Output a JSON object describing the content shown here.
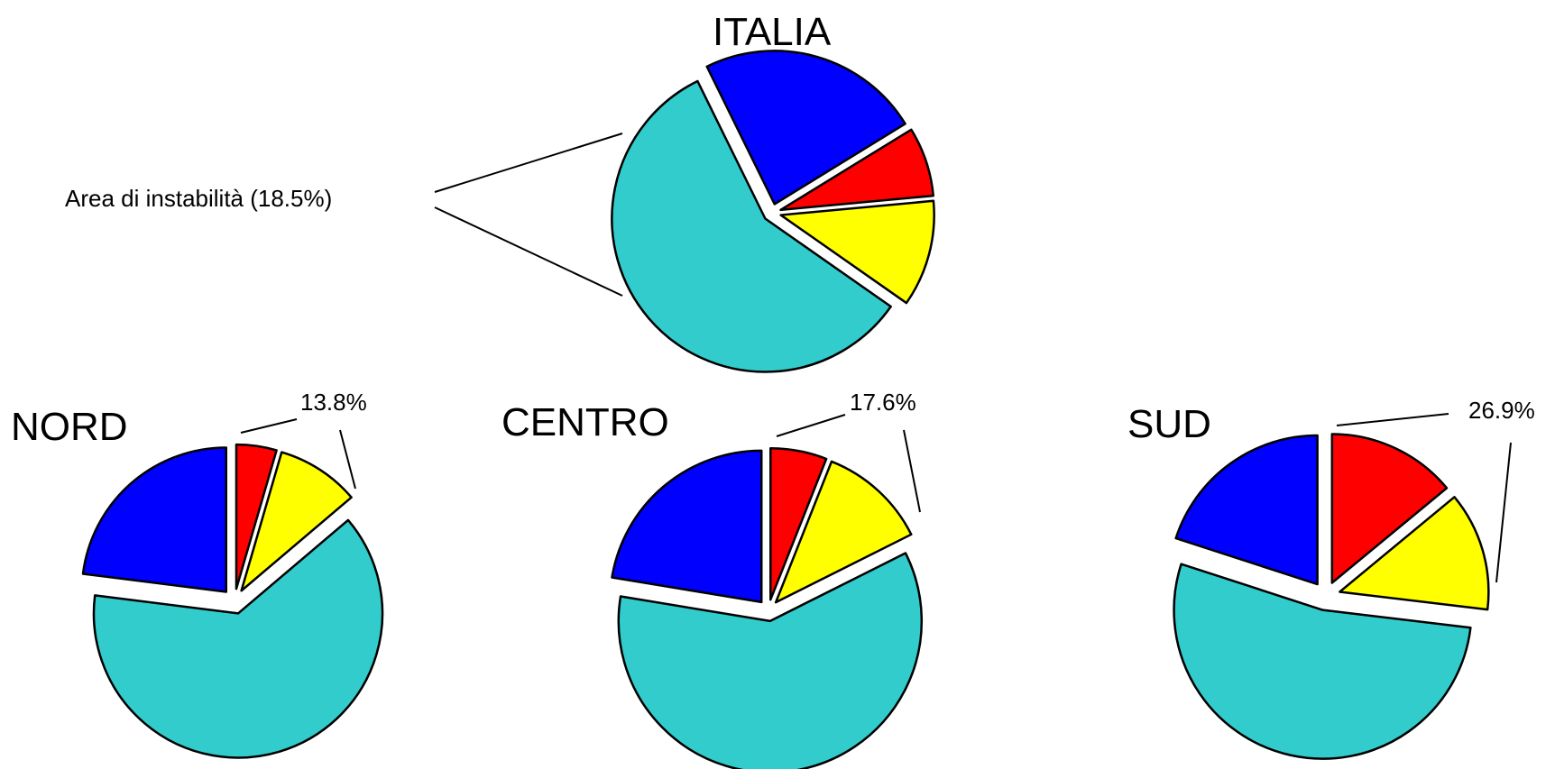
{
  "colors": {
    "teal": "#33CCCC",
    "blue": "#0000FF",
    "red": "#FF0000",
    "yellow": "#FFFF00"
  },
  "chart_data": [
    {
      "type": "pie",
      "title": "ITALIA",
      "annotation": "Area di instabilità (18.5%)",
      "slices": [
        {
          "color": "teal",
          "value": 58.0
        },
        {
          "color": "blue",
          "value": 23.5
        },
        {
          "color": "red",
          "value": 7.3
        },
        {
          "color": "yellow",
          "value": 11.2
        }
      ]
    },
    {
      "type": "pie",
      "title": "NORD",
      "annotation": "13.8%",
      "slices": [
        {
          "color": "red",
          "value": 4.5
        },
        {
          "color": "yellow",
          "value": 9.3
        },
        {
          "color": "teal",
          "value": 63.2
        },
        {
          "color": "blue",
          "value": 23.0
        }
      ]
    },
    {
      "type": "pie",
      "title": "CENTRO",
      "annotation": "17.6%",
      "slices": [
        {
          "color": "red",
          "value": 6.0
        },
        {
          "color": "yellow",
          "value": 11.6
        },
        {
          "color": "teal",
          "value": 60.0
        },
        {
          "color": "blue",
          "value": 22.4
        }
      ]
    },
    {
      "type": "pie",
      "title": "SUD",
      "annotation": "26.9%",
      "slices": [
        {
          "color": "red",
          "value": 14.0
        },
        {
          "color": "yellow",
          "value": 12.9
        },
        {
          "color": "teal",
          "value": 53.1
        },
        {
          "color": "blue",
          "value": 20.0
        }
      ]
    }
  ]
}
